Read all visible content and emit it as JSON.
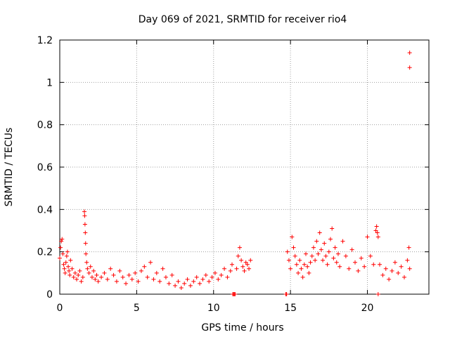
{
  "chart_data": {
    "type": "scatter",
    "title": "Day 069 of 2021, SRMTID for receiver rio4",
    "xlabel": "GPS time / hours",
    "ylabel": "SRMTID / TECUs",
    "xlim": [
      0,
      24
    ],
    "ylim": [
      0,
      1.2
    ],
    "xticks": [
      0,
      5,
      10,
      15,
      20
    ],
    "xtick_labels": [
      "0",
      "5",
      "10",
      "15",
      "20"
    ],
    "yticks": [
      0,
      0.2,
      0.4,
      0.6,
      0.8,
      1.0,
      1.2
    ],
    "ytick_labels": [
      "0",
      "0.2",
      "0.4",
      "0.6",
      "0.8",
      "1",
      "1.2"
    ],
    "grid": true,
    "marker": "+",
    "series_color": "#ff0000",
    "series": [
      {
        "name": "SRMTID",
        "points": [
          [
            0.0,
            0.17
          ],
          [
            0.05,
            0.22
          ],
          [
            0.1,
            0.25
          ],
          [
            0.15,
            0.26
          ],
          [
            0.2,
            0.19
          ],
          [
            0.25,
            0.14
          ],
          [
            0.3,
            0.12
          ],
          [
            0.35,
            0.1
          ],
          [
            0.4,
            0.15
          ],
          [
            0.45,
            0.18
          ],
          [
            0.5,
            0.2
          ],
          [
            0.55,
            0.13
          ],
          [
            0.6,
            0.11
          ],
          [
            0.65,
            0.09
          ],
          [
            0.7,
            0.16
          ],
          [
            0.8,
            0.12
          ],
          [
            0.9,
            0.08
          ],
          [
            1.0,
            0.1
          ],
          [
            1.1,
            0.07
          ],
          [
            1.2,
            0.09
          ],
          [
            1.3,
            0.11
          ],
          [
            1.4,
            0.06
          ],
          [
            1.5,
            0.08
          ],
          [
            1.6,
            0.39
          ],
          [
            1.62,
            0.37
          ],
          [
            1.64,
            0.33
          ],
          [
            1.66,
            0.29
          ],
          [
            1.68,
            0.24
          ],
          [
            1.7,
            0.19
          ],
          [
            1.75,
            0.15
          ],
          [
            1.8,
            0.12
          ],
          [
            1.9,
            0.1
          ],
          [
            2.0,
            0.13
          ],
          [
            2.1,
            0.08
          ],
          [
            2.2,
            0.11
          ],
          [
            2.3,
            0.07
          ],
          [
            2.4,
            0.09
          ],
          [
            2.5,
            0.06
          ],
          [
            2.7,
            0.08
          ],
          [
            2.9,
            0.1
          ],
          [
            3.1,
            0.07
          ],
          [
            3.3,
            0.12
          ],
          [
            3.5,
            0.09
          ],
          [
            3.7,
            0.06
          ],
          [
            3.9,
            0.11
          ],
          [
            4.1,
            0.08
          ],
          [
            4.3,
            0.05
          ],
          [
            4.5,
            0.09
          ],
          [
            4.7,
            0.07
          ],
          [
            4.9,
            0.1
          ],
          [
            5.1,
            0.06
          ],
          [
            5.3,
            0.11
          ],
          [
            5.5,
            0.13
          ],
          [
            5.7,
            0.08
          ],
          [
            5.9,
            0.15
          ],
          [
            6.1,
            0.07
          ],
          [
            6.3,
            0.1
          ],
          [
            6.5,
            0.06
          ],
          [
            6.7,
            0.12
          ],
          [
            6.9,
            0.08
          ],
          [
            7.1,
            0.05
          ],
          [
            7.3,
            0.09
          ],
          [
            7.5,
            0.04
          ],
          [
            7.7,
            0.06
          ],
          [
            7.9,
            0.03
          ],
          [
            8.1,
            0.05
          ],
          [
            8.3,
            0.07
          ],
          [
            8.5,
            0.04
          ],
          [
            8.7,
            0.06
          ],
          [
            8.9,
            0.08
          ],
          [
            9.1,
            0.05
          ],
          [
            9.3,
            0.07
          ],
          [
            9.5,
            0.09
          ],
          [
            9.7,
            0.06
          ],
          [
            9.9,
            0.08
          ],
          [
            10.1,
            0.1
          ],
          [
            10.3,
            0.07
          ],
          [
            10.5,
            0.09
          ],
          [
            10.7,
            0.12
          ],
          [
            10.9,
            0.08
          ],
          [
            11.1,
            0.11
          ],
          [
            11.2,
            0.14
          ],
          [
            11.25,
            0.0
          ],
          [
            11.3,
            0.0
          ],
          [
            11.35,
            0.0
          ],
          [
            11.4,
            0.0
          ],
          [
            11.5,
            0.12
          ],
          [
            11.6,
            0.18
          ],
          [
            11.7,
            0.22
          ],
          [
            11.8,
            0.16
          ],
          [
            11.9,
            0.13
          ],
          [
            12.0,
            0.11
          ],
          [
            12.1,
            0.15
          ],
          [
            12.2,
            0.14
          ],
          [
            12.3,
            0.12
          ],
          [
            12.4,
            0.16
          ],
          [
            14.7,
            0.0
          ],
          [
            14.75,
            0.0
          ],
          [
            14.8,
            0.2
          ],
          [
            14.9,
            0.16
          ],
          [
            15.0,
            0.12
          ],
          [
            15.1,
            0.27
          ],
          [
            15.2,
            0.22
          ],
          [
            15.3,
            0.18
          ],
          [
            15.4,
            0.14
          ],
          [
            15.5,
            0.1
          ],
          [
            15.6,
            0.16
          ],
          [
            15.7,
            0.12
          ],
          [
            15.8,
            0.08
          ],
          [
            15.9,
            0.14
          ],
          [
            16.0,
            0.19
          ],
          [
            16.1,
            0.13
          ],
          [
            16.2,
            0.1
          ],
          [
            16.3,
            0.15
          ],
          [
            16.4,
            0.18
          ],
          [
            16.5,
            0.22
          ],
          [
            16.6,
            0.16
          ],
          [
            16.7,
            0.25
          ],
          [
            16.8,
            0.19
          ],
          [
            16.9,
            0.29
          ],
          [
            17.0,
            0.21
          ],
          [
            17.1,
            0.16
          ],
          [
            17.2,
            0.24
          ],
          [
            17.3,
            0.18
          ],
          [
            17.4,
            0.14
          ],
          [
            17.5,
            0.2
          ],
          [
            17.6,
            0.26
          ],
          [
            17.7,
            0.31
          ],
          [
            17.8,
            0.17
          ],
          [
            17.9,
            0.22
          ],
          [
            18.0,
            0.15
          ],
          [
            18.1,
            0.19
          ],
          [
            18.2,
            0.13
          ],
          [
            18.4,
            0.25
          ],
          [
            18.6,
            0.18
          ],
          [
            18.8,
            0.12
          ],
          [
            19.0,
            0.21
          ],
          [
            19.2,
            0.15
          ],
          [
            19.4,
            0.11
          ],
          [
            19.6,
            0.17
          ],
          [
            19.8,
            0.13
          ],
          [
            20.0,
            0.27
          ],
          [
            20.2,
            0.18
          ],
          [
            20.4,
            0.14
          ],
          [
            20.55,
            0.3
          ],
          [
            20.6,
            0.32
          ],
          [
            20.65,
            0.29
          ],
          [
            20.7,
            0.27
          ],
          [
            20.7,
            0.0
          ],
          [
            20.8,
            0.14
          ],
          [
            21.0,
            0.09
          ],
          [
            21.2,
            0.12
          ],
          [
            21.4,
            0.07
          ],
          [
            21.6,
            0.11
          ],
          [
            21.8,
            0.15
          ],
          [
            22.0,
            0.1
          ],
          [
            22.2,
            0.13
          ],
          [
            22.4,
            0.08
          ],
          [
            22.6,
            0.16
          ],
          [
            22.7,
            0.22
          ],
          [
            22.75,
            0.12
          ],
          [
            22.75,
            1.14
          ],
          [
            22.75,
            1.07
          ]
        ]
      }
    ]
  }
}
